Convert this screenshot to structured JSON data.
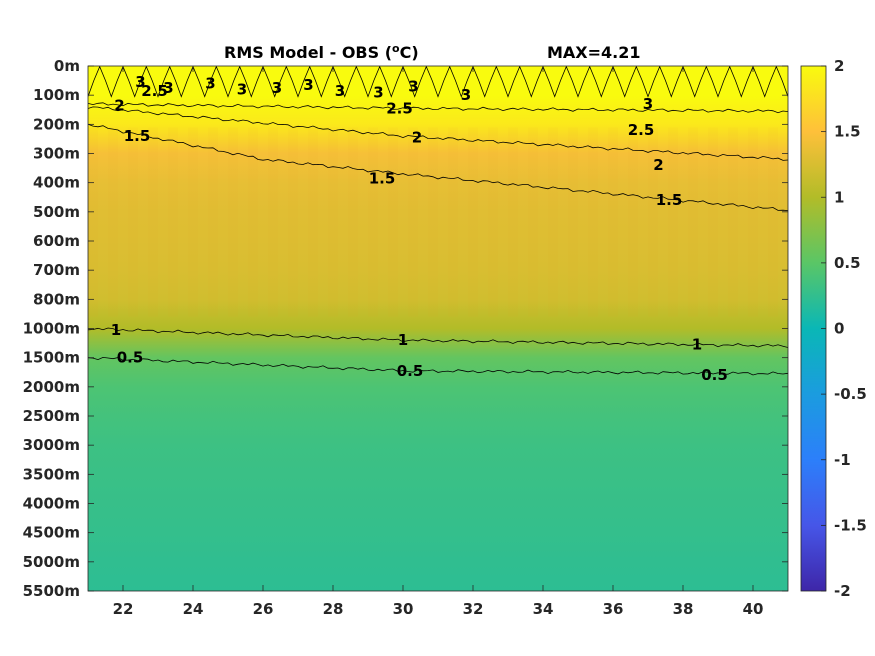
{
  "chart_data": {
    "type": "heatmap",
    "title": "RMS Model - OBS (",
    "title_unit_sup": "o",
    "title_unit_end": "C)",
    "max_label": "MAX=4.21",
    "xlabel": "",
    "ylabel": "",
    "x_ticks": [
      22,
      24,
      26,
      28,
      30,
      32,
      34,
      36,
      38,
      40
    ],
    "x_range": [
      21,
      41
    ],
    "y_ticks": [
      "0m",
      "100m",
      "200m",
      "300m",
      "400m",
      "500m",
      "600m",
      "700m",
      "800m",
      "1000m",
      "1500m",
      "2000m",
      "2500m",
      "3000m",
      "3500m",
      "4000m",
      "4500m",
      "5000m",
      "5500m"
    ],
    "colorbar": {
      "ticks": [
        "2",
        "1.5",
        "1",
        "0.5",
        "0",
        "-0.5",
        "-1",
        "-1.5",
        "-2"
      ],
      "range": [
        -2,
        2
      ],
      "colormap": "parula"
    },
    "depth_profile": [
      {
        "level": 0,
        "value": 2.0
      },
      {
        "level": 1,
        "value": 2.0
      },
      {
        "level": 2,
        "value": 1.85
      },
      {
        "level": 3,
        "value": 1.45
      },
      {
        "level": 4,
        "value": 1.35
      },
      {
        "level": 5,
        "value": 1.3
      },
      {
        "level": 6,
        "value": 1.28
      },
      {
        "level": 7,
        "value": 1.25
      },
      {
        "level": 8,
        "value": 1.2
      },
      {
        "level": 9,
        "value": 1.0
      },
      {
        "level": 10,
        "value": 0.55
      },
      {
        "level": 11,
        "value": 0.42
      },
      {
        "level": 12,
        "value": 0.36
      },
      {
        "level": 13,
        "value": 0.32
      },
      {
        "level": 14,
        "value": 0.3
      },
      {
        "level": 15,
        "value": 0.28
      },
      {
        "level": 16,
        "value": 0.26
      },
      {
        "level": 17,
        "value": 0.24
      },
      {
        "level": 18,
        "value": 0.22
      }
    ],
    "contours": [
      {
        "value": 2.5,
        "label": "2.5",
        "levels": [
          [
            21,
            1.3
          ],
          [
            30,
            1.45
          ],
          [
            41,
            1.55
          ]
        ]
      },
      {
        "value": 2,
        "label": "2",
        "levels": [
          [
            21,
            1.4
          ],
          [
            30,
            2.4
          ],
          [
            41,
            3.2
          ]
        ]
      },
      {
        "value": 1.5,
        "label": "1.5",
        "levels": [
          [
            21,
            2.0
          ],
          [
            26,
            3.2
          ],
          [
            30,
            3.7
          ],
          [
            41,
            4.95
          ]
        ]
      },
      {
        "value": 1,
        "label": "1",
        "levels": [
          [
            21,
            9.0
          ],
          [
            30,
            9.4
          ],
          [
            41,
            9.6
          ]
        ]
      },
      {
        "value": 0.5,
        "label": "0.5",
        "levels": [
          [
            21,
            10.0
          ],
          [
            30,
            10.45
          ],
          [
            41,
            10.55
          ]
        ]
      }
    ],
    "contour_labels": [
      {
        "text": "2.5",
        "x": 22.9,
        "level": 0.85
      },
      {
        "text": "2.5",
        "x": 29.9,
        "level": 1.45
      },
      {
        "text": "2.5",
        "x": 36.8,
        "level": 2.2
      },
      {
        "text": "2",
        "x": 21.9,
        "level": 1.35
      },
      {
        "text": "2",
        "x": 30.4,
        "level": 2.45
      },
      {
        "text": "2",
        "x": 37.3,
        "level": 3.4
      },
      {
        "text": "1.5",
        "x": 22.4,
        "level": 2.4
      },
      {
        "text": "1.5",
        "x": 29.4,
        "level": 3.85
      },
      {
        "text": "1.5",
        "x": 37.6,
        "level": 4.6
      },
      {
        "text": "1",
        "x": 21.8,
        "level": 9.05
      },
      {
        "text": "1",
        "x": 30.0,
        "level": 9.4
      },
      {
        "text": "1",
        "x": 38.4,
        "level": 9.55
      },
      {
        "text": "0.5",
        "x": 22.2,
        "level": 10.0
      },
      {
        "text": "0.5",
        "x": 30.2,
        "level": 10.45
      },
      {
        "text": "0.5",
        "x": 38.9,
        "level": 10.6
      },
      {
        "text": "3",
        "x": 22.5,
        "level": 0.55
      },
      {
        "text": "3",
        "x": 23.3,
        "level": 0.75
      },
      {
        "text": "3",
        "x": 24.5,
        "level": 0.6
      },
      {
        "text": "3",
        "x": 25.4,
        "level": 0.8
      },
      {
        "text": "3",
        "x": 26.4,
        "level": 0.75
      },
      {
        "text": "3",
        "x": 27.3,
        "level": 0.65
      },
      {
        "text": "3",
        "x": 28.2,
        "level": 0.85
      },
      {
        "text": "3",
        "x": 29.3,
        "level": 0.9
      },
      {
        "text": "3",
        "x": 30.3,
        "level": 0.7
      },
      {
        "text": "3",
        "x": 31.8,
        "level": 1.0
      },
      {
        "text": "3",
        "x": 37.0,
        "level": 1.3
      }
    ]
  }
}
